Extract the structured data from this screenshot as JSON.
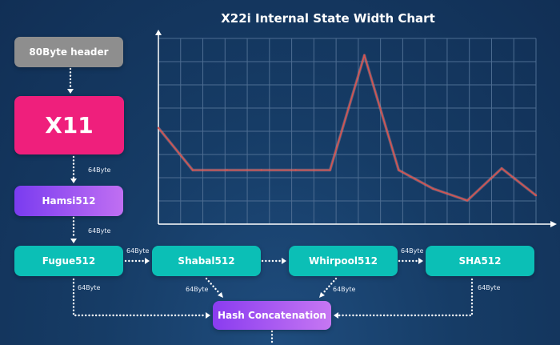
{
  "chart_data": {
    "type": "line",
    "title": "X22i Internal State Width Chart",
    "xlabel": "",
    "ylabel": "",
    "x": [
      1,
      2,
      3,
      4,
      5,
      6,
      7,
      8,
      9,
      10,
      11,
      12
    ],
    "series": [
      {
        "values": [
          0.57,
          0.32,
          0.32,
          0.32,
          0.32,
          0.32,
          1.0,
          0.32,
          0.21,
          0.14,
          0.33,
          0.17
        ]
      }
    ],
    "ylim": [
      0,
      1.1
    ],
    "grid": true,
    "line_color": "#d9534f"
  },
  "diagram": {
    "header_box": "80Byte header",
    "x11_box": "X11",
    "hamsi_box": "Hamsi512",
    "fugue_box": "Fugue512",
    "shabal_box": "Shabal512",
    "whirlpool_box": "Whirpool512",
    "sha_box": "SHA512",
    "hash_box": "Hash Concatenation",
    "edge_labels": {
      "x11_to_hamsi": "64Byte",
      "hamsi_to_fugue": "64Byte",
      "fugue_to_shabal": "64Byte",
      "whirlpool_to_sha": "64Byte",
      "shabal_to_hash": "64Byte",
      "whirlpool_to_hash": "64Byte",
      "fugue_to_hash": "64Byte",
      "sha_to_hash": "64Byte"
    }
  },
  "colors": {
    "background": "#163c66",
    "header": "#8e8e8e",
    "x11": "#ef1f7c",
    "purple": "#9a4cf0",
    "teal": "#0bbfb6",
    "chart_grid": "#4d6d92",
    "line": "#d9534f"
  }
}
